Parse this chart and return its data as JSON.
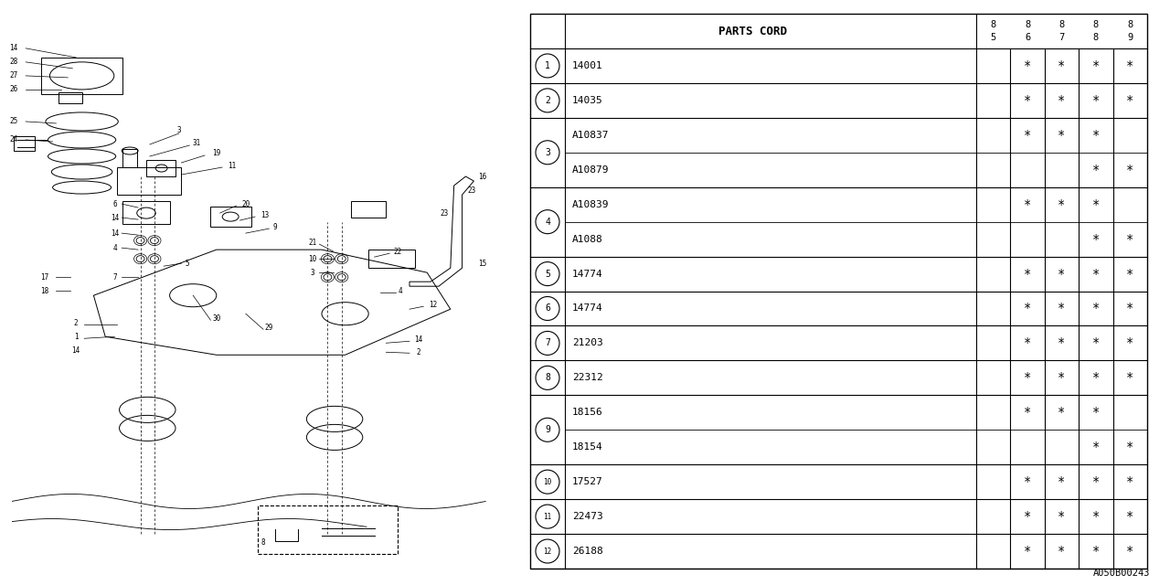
{
  "diagram_code": "A050B00243",
  "table_header": "PARTS CORD",
  "col_headers": [
    [
      "8",
      "5"
    ],
    [
      "8",
      "6"
    ],
    [
      "8",
      "7"
    ],
    [
      "8",
      "8"
    ],
    [
      "8",
      "9"
    ]
  ],
  "rows": [
    {
      "label": "1",
      "parts": [
        "14001"
      ],
      "marks": [
        [
          false,
          true,
          true,
          true,
          true
        ]
      ]
    },
    {
      "label": "2",
      "parts": [
        "14035"
      ],
      "marks": [
        [
          false,
          true,
          true,
          true,
          true
        ]
      ]
    },
    {
      "label": "3",
      "parts": [
        "A10837",
        "A10879"
      ],
      "marks": [
        [
          false,
          true,
          true,
          true,
          false
        ],
        [
          false,
          false,
          false,
          true,
          true
        ]
      ]
    },
    {
      "label": "4",
      "parts": [
        "A10839",
        "A1088"
      ],
      "marks": [
        [
          false,
          true,
          true,
          true,
          false
        ],
        [
          false,
          false,
          false,
          true,
          true
        ]
      ]
    },
    {
      "label": "5",
      "parts": [
        "14774"
      ],
      "marks": [
        [
          false,
          true,
          true,
          true,
          true
        ]
      ]
    },
    {
      "label": "6",
      "parts": [
        "14774"
      ],
      "marks": [
        [
          false,
          true,
          true,
          true,
          true
        ]
      ]
    },
    {
      "label": "7",
      "parts": [
        "21203"
      ],
      "marks": [
        [
          false,
          true,
          true,
          true,
          true
        ]
      ]
    },
    {
      "label": "8",
      "parts": [
        "22312"
      ],
      "marks": [
        [
          false,
          true,
          true,
          true,
          true
        ]
      ]
    },
    {
      "label": "9",
      "parts": [
        "18156",
        "18154"
      ],
      "marks": [
        [
          false,
          true,
          true,
          true,
          false
        ],
        [
          false,
          false,
          false,
          true,
          true
        ]
      ]
    },
    {
      "label": "10",
      "parts": [
        "17527"
      ],
      "marks": [
        [
          false,
          true,
          true,
          true,
          true
        ]
      ]
    },
    {
      "label": "11",
      "parts": [
        "22473"
      ],
      "marks": [
        [
          false,
          true,
          true,
          true,
          true
        ]
      ]
    },
    {
      "label": "12",
      "parts": [
        "26188"
      ],
      "marks": [
        [
          false,
          true,
          true,
          true,
          true
        ]
      ]
    }
  ],
  "bg_color": "#ffffff",
  "lc": "#000000"
}
